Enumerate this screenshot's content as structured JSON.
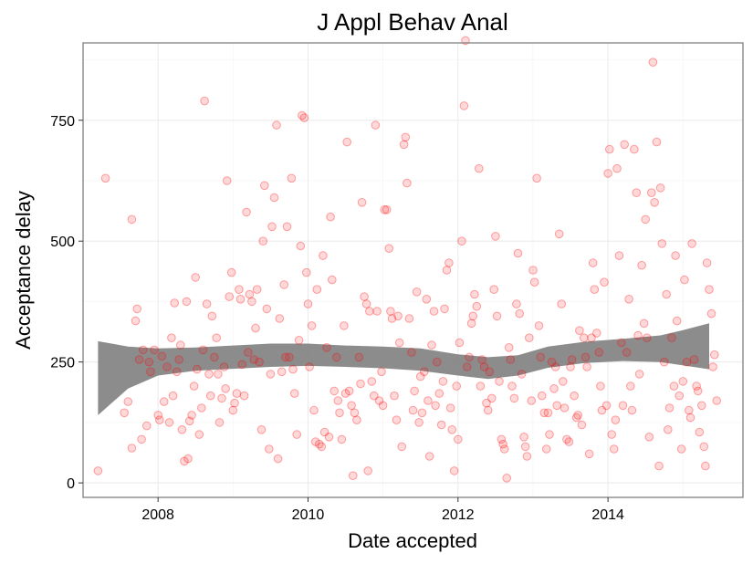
{
  "chart_data": {
    "type": "scatter",
    "title": "J Appl Behav Anal",
    "xlabel": "Date accepted",
    "ylabel": "Acceptance delay",
    "xlim": [
      2007.0,
      2015.8
    ],
    "ylim": [
      -30,
      910
    ],
    "x_ticks": [
      2008,
      2010,
      2012,
      2014
    ],
    "x_tick_labels": [
      "2008",
      "2010",
      "2012",
      "2014"
    ],
    "y_ticks": [
      0,
      250,
      500,
      750
    ],
    "y_tick_labels": [
      "0",
      "250",
      "500",
      "750"
    ],
    "grid": true,
    "legend": "none",
    "point_color": "#ff0000",
    "band_color": "#808080",
    "smooth_band": [
      {
        "x": 2007.2,
        "lower": 140,
        "upper": 293
      },
      {
        "x": 2007.6,
        "lower": 195,
        "upper": 282
      },
      {
        "x": 2008.0,
        "lower": 222,
        "upper": 278
      },
      {
        "x": 2008.5,
        "lower": 232,
        "upper": 280
      },
      {
        "x": 2009.0,
        "lower": 236,
        "upper": 284
      },
      {
        "x": 2009.5,
        "lower": 240,
        "upper": 288
      },
      {
        "x": 2010.0,
        "lower": 242,
        "upper": 288
      },
      {
        "x": 2010.5,
        "lower": 240,
        "upper": 284
      },
      {
        "x": 2011.0,
        "lower": 237,
        "upper": 282
      },
      {
        "x": 2011.5,
        "lower": 232,
        "upper": 278
      },
      {
        "x": 2012.0,
        "lower": 222,
        "upper": 266
      },
      {
        "x": 2012.4,
        "lower": 215,
        "upper": 260
      },
      {
        "x": 2012.8,
        "lower": 222,
        "upper": 264
      },
      {
        "x": 2013.2,
        "lower": 238,
        "upper": 282
      },
      {
        "x": 2013.7,
        "lower": 248,
        "upper": 292
      },
      {
        "x": 2014.2,
        "lower": 252,
        "upper": 298
      },
      {
        "x": 2014.7,
        "lower": 250,
        "upper": 305
      },
      {
        "x": 2015.0,
        "lower": 243,
        "upper": 316
      },
      {
        "x": 2015.35,
        "lower": 235,
        "upper": 330
      }
    ],
    "points": [
      [
        2007.2,
        25
      ],
      [
        2007.3,
        630
      ],
      [
        2007.55,
        145
      ],
      [
        2007.6,
        168
      ],
      [
        2007.65,
        72
      ],
      [
        2007.65,
        545
      ],
      [
        2007.7,
        335
      ],
      [
        2007.72,
        360
      ],
      [
        2007.75,
        255
      ],
      [
        2007.78,
        90
      ],
      [
        2007.8,
        275
      ],
      [
        2007.85,
        118
      ],
      [
        2007.88,
        250
      ],
      [
        2007.9,
        230
      ],
      [
        2007.95,
        275
      ],
      [
        2008.0,
        140
      ],
      [
        2008.02,
        130
      ],
      [
        2008.05,
        262
      ],
      [
        2008.08,
        168
      ],
      [
        2008.12,
        240
      ],
      [
        2008.15,
        125
      ],
      [
        2008.18,
        300
      ],
      [
        2008.2,
        180
      ],
      [
        2008.22,
        372
      ],
      [
        2008.25,
        230
      ],
      [
        2008.28,
        255
      ],
      [
        2008.3,
        285
      ],
      [
        2008.32,
        110
      ],
      [
        2008.35,
        45
      ],
      [
        2008.38,
        375
      ],
      [
        2008.4,
        50
      ],
      [
        2008.42,
        128
      ],
      [
        2008.45,
        140
      ],
      [
        2008.48,
        200
      ],
      [
        2008.5,
        425
      ],
      [
        2008.52,
        235
      ],
      [
        2008.55,
        100
      ],
      [
        2008.58,
        155
      ],
      [
        2008.6,
        275
      ],
      [
        2008.62,
        790
      ],
      [
        2008.65,
        370
      ],
      [
        2008.68,
        225
      ],
      [
        2008.7,
        180
      ],
      [
        2008.72,
        345
      ],
      [
        2008.75,
        260
      ],
      [
        2008.78,
        300
      ],
      [
        2008.8,
        225
      ],
      [
        2008.82,
        125
      ],
      [
        2008.85,
        175
      ],
      [
        2008.88,
        240
      ],
      [
        2008.9,
        195
      ],
      [
        2008.92,
        625
      ],
      [
        2008.95,
        385
      ],
      [
        2008.98,
        435
      ],
      [
        2009.0,
        150
      ],
      [
        2009.02,
        165
      ],
      [
        2009.05,
        185
      ],
      [
        2009.08,
        400
      ],
      [
        2009.1,
        380
      ],
      [
        2009.12,
        245
      ],
      [
        2009.15,
        180
      ],
      [
        2009.18,
        560
      ],
      [
        2009.2,
        270
      ],
      [
        2009.22,
        390
      ],
      [
        2009.25,
        375
      ],
      [
        2009.28,
        255
      ],
      [
        2009.3,
        320
      ],
      [
        2009.32,
        400
      ],
      [
        2009.35,
        250
      ],
      [
        2009.38,
        110
      ],
      [
        2009.4,
        500
      ],
      [
        2009.42,
        615
      ],
      [
        2009.45,
        360
      ],
      [
        2009.48,
        70
      ],
      [
        2009.5,
        225
      ],
      [
        2009.52,
        530
      ],
      [
        2009.55,
        590
      ],
      [
        2009.58,
        740
      ],
      [
        2009.6,
        50
      ],
      [
        2009.62,
        340
      ],
      [
        2009.65,
        230
      ],
      [
        2009.68,
        410
      ],
      [
        2009.7,
        260
      ],
      [
        2009.72,
        530
      ],
      [
        2009.75,
        260
      ],
      [
        2009.78,
        630
      ],
      [
        2009.8,
        235
      ],
      [
        2009.82,
        185
      ],
      [
        2009.85,
        100
      ],
      [
        2009.88,
        295
      ],
      [
        2009.9,
        490
      ],
      [
        2009.92,
        760
      ],
      [
        2009.95,
        755
      ],
      [
        2009.98,
        435
      ],
      [
        2010.0,
        370
      ],
      [
        2010.02,
        240
      ],
      [
        2010.05,
        325
      ],
      [
        2010.08,
        150
      ],
      [
        2010.1,
        85
      ],
      [
        2010.12,
        400
      ],
      [
        2010.15,
        80
      ],
      [
        2010.18,
        75
      ],
      [
        2010.2,
        470
      ],
      [
        2010.22,
        105
      ],
      [
        2010.25,
        280
      ],
      [
        2010.28,
        95
      ],
      [
        2010.3,
        550
      ],
      [
        2010.32,
        420
      ],
      [
        2010.35,
        190
      ],
      [
        2010.38,
        260
      ],
      [
        2010.4,
        170
      ],
      [
        2010.42,
        145
      ],
      [
        2010.45,
        90
      ],
      [
        2010.48,
        325
      ],
      [
        2010.5,
        185
      ],
      [
        2010.52,
        705
      ],
      [
        2010.55,
        190
      ],
      [
        2010.58,
        160
      ],
      [
        2010.6,
        15
      ],
      [
        2010.62,
        145
      ],
      [
        2010.65,
        130
      ],
      [
        2010.68,
        260
      ],
      [
        2010.7,
        205
      ],
      [
        2010.72,
        580
      ],
      [
        2010.75,
        385
      ],
      [
        2010.78,
        370
      ],
      [
        2010.8,
        25
      ],
      [
        2010.82,
        355
      ],
      [
        2010.85,
        210
      ],
      [
        2010.88,
        180
      ],
      [
        2010.9,
        740
      ],
      [
        2010.92,
        355
      ],
      [
        2010.95,
        170
      ],
      [
        2010.98,
        230
      ],
      [
        2011.0,
        160
      ],
      [
        2011.02,
        565
      ],
      [
        2011.05,
        565
      ],
      [
        2011.08,
        485
      ],
      [
        2011.1,
        355
      ],
      [
        2011.12,
        340
      ],
      [
        2011.15,
        180
      ],
      [
        2011.18,
        130
      ],
      [
        2011.2,
        345
      ],
      [
        2011.22,
        290
      ],
      [
        2011.25,
        75
      ],
      [
        2011.28,
        700
      ],
      [
        2011.3,
        715
      ],
      [
        2011.32,
        620
      ],
      [
        2011.35,
        340
      ],
      [
        2011.38,
        270
      ],
      [
        2011.4,
        150
      ],
      [
        2011.42,
        190
      ],
      [
        2011.45,
        395
      ],
      [
        2011.48,
        125
      ],
      [
        2011.5,
        220
      ],
      [
        2011.52,
        145
      ],
      [
        2011.55,
        230
      ],
      [
        2011.58,
        380
      ],
      [
        2011.6,
        170
      ],
      [
        2011.62,
        55
      ],
      [
        2011.65,
        285
      ],
      [
        2011.68,
        355
      ],
      [
        2011.7,
        160
      ],
      [
        2011.72,
        250
      ],
      [
        2011.75,
        185
      ],
      [
        2011.78,
        120
      ],
      [
        2011.8,
        210
      ],
      [
        2011.82,
        360
      ],
      [
        2011.85,
        440
      ],
      [
        2011.88,
        455
      ],
      [
        2011.9,
        155
      ],
      [
        2011.92,
        110
      ],
      [
        2011.95,
        25
      ],
      [
        2011.98,
        200
      ],
      [
        2012.0,
        90
      ],
      [
        2012.02,
        290
      ],
      [
        2012.05,
        500
      ],
      [
        2012.08,
        780
      ],
      [
        2012.1,
        915
      ],
      [
        2012.12,
        240
      ],
      [
        2012.15,
        260
      ],
      [
        2012.18,
        330
      ],
      [
        2012.2,
        345
      ],
      [
        2012.22,
        390
      ],
      [
        2012.25,
        365
      ],
      [
        2012.28,
        650
      ],
      [
        2012.3,
        200
      ],
      [
        2012.32,
        255
      ],
      [
        2012.35,
        240
      ],
      [
        2012.38,
        165
      ],
      [
        2012.4,
        150
      ],
      [
        2012.42,
        230
      ],
      [
        2012.45,
        175
      ],
      [
        2012.48,
        400
      ],
      [
        2012.5,
        510
      ],
      [
        2012.52,
        345
      ],
      [
        2012.55,
        210
      ],
      [
        2012.58,
        90
      ],
      [
        2012.6,
        80
      ],
      [
        2012.62,
        70
      ],
      [
        2012.65,
        10
      ],
      [
        2012.68,
        280
      ],
      [
        2012.7,
        255
      ],
      [
        2012.72,
        200
      ],
      [
        2012.75,
        175
      ],
      [
        2012.78,
        370
      ],
      [
        2012.8,
        475
      ],
      [
        2012.82,
        350
      ],
      [
        2012.85,
        225
      ],
      [
        2012.88,
        95
      ],
      [
        2012.9,
        75
      ],
      [
        2012.92,
        55
      ],
      [
        2012.95,
        300
      ],
      [
        2012.98,
        170
      ],
      [
        2013.0,
        440
      ],
      [
        2013.02,
        415
      ],
      [
        2013.05,
        630
      ],
      [
        2013.08,
        325
      ],
      [
        2013.1,
        260
      ],
      [
        2013.12,
        180
      ],
      [
        2013.15,
        145
      ],
      [
        2013.18,
        70
      ],
      [
        2013.2,
        145
      ],
      [
        2013.22,
        100
      ],
      [
        2013.25,
        250
      ],
      [
        2013.28,
        195
      ],
      [
        2013.3,
        240
      ],
      [
        2013.32,
        160
      ],
      [
        2013.35,
        515
      ],
      [
        2013.38,
        370
      ],
      [
        2013.4,
        210
      ],
      [
        2013.42,
        155
      ],
      [
        2013.45,
        90
      ],
      [
        2013.48,
        85
      ],
      [
        2013.5,
        240
      ],
      [
        2013.52,
        255
      ],
      [
        2013.55,
        180
      ],
      [
        2013.58,
        135
      ],
      [
        2013.6,
        140
      ],
      [
        2013.62,
        315
      ],
      [
        2013.65,
        120
      ],
      [
        2013.68,
        300
      ],
      [
        2013.7,
        260
      ],
      [
        2013.72,
        240
      ],
      [
        2013.75,
        60
      ],
      [
        2013.78,
        300
      ],
      [
        2013.8,
        455
      ],
      [
        2013.82,
        400
      ],
      [
        2013.85,
        310
      ],
      [
        2013.88,
        270
      ],
      [
        2013.9,
        200
      ],
      [
        2013.92,
        150
      ],
      [
        2013.95,
        415
      ],
      [
        2013.98,
        160
      ],
      [
        2014.0,
        640
      ],
      [
        2014.02,
        690
      ],
      [
        2014.05,
        100
      ],
      [
        2014.08,
        70
      ],
      [
        2014.1,
        130
      ],
      [
        2014.12,
        650
      ],
      [
        2014.15,
        470
      ],
      [
        2014.18,
        290
      ],
      [
        2014.2,
        160
      ],
      [
        2014.22,
        700
      ],
      [
        2014.25,
        270
      ],
      [
        2014.28,
        380
      ],
      [
        2014.3,
        200
      ],
      [
        2014.32,
        150
      ],
      [
        2014.35,
        690
      ],
      [
        2014.38,
        600
      ],
      [
        2014.4,
        305
      ],
      [
        2014.42,
        225
      ],
      [
        2014.45,
        450
      ],
      [
        2014.48,
        330
      ],
      [
        2014.5,
        545
      ],
      [
        2014.52,
        300
      ],
      [
        2014.55,
        95
      ],
      [
        2014.58,
        600
      ],
      [
        2014.6,
        870
      ],
      [
        2014.62,
        580
      ],
      [
        2014.65,
        705
      ],
      [
        2014.68,
        35
      ],
      [
        2014.7,
        610
      ],
      [
        2014.72,
        495
      ],
      [
        2014.75,
        250
      ],
      [
        2014.78,
        390
      ],
      [
        2014.8,
        110
      ],
      [
        2014.82,
        155
      ],
      [
        2014.85,
        300
      ],
      [
        2014.88,
        200
      ],
      [
        2014.9,
        470
      ],
      [
        2014.92,
        335
      ],
      [
        2014.95,
        180
      ],
      [
        2014.98,
        70
      ],
      [
        2015.0,
        210
      ],
      [
        2015.02,
        420
      ],
      [
        2015.05,
        250
      ],
      [
        2015.08,
        150
      ],
      [
        2015.1,
        135
      ],
      [
        2015.12,
        495
      ],
      [
        2015.15,
        255
      ],
      [
        2015.18,
        200
      ],
      [
        2015.2,
        190
      ],
      [
        2015.22,
        105
      ],
      [
        2015.25,
        160
      ],
      [
        2015.28,
        75
      ],
      [
        2015.3,
        35
      ],
      [
        2015.32,
        455
      ],
      [
        2015.35,
        400
      ],
      [
        2015.38,
        350
      ],
      [
        2015.4,
        240
      ],
      [
        2015.42,
        265
      ],
      [
        2015.45,
        170
      ]
    ]
  }
}
